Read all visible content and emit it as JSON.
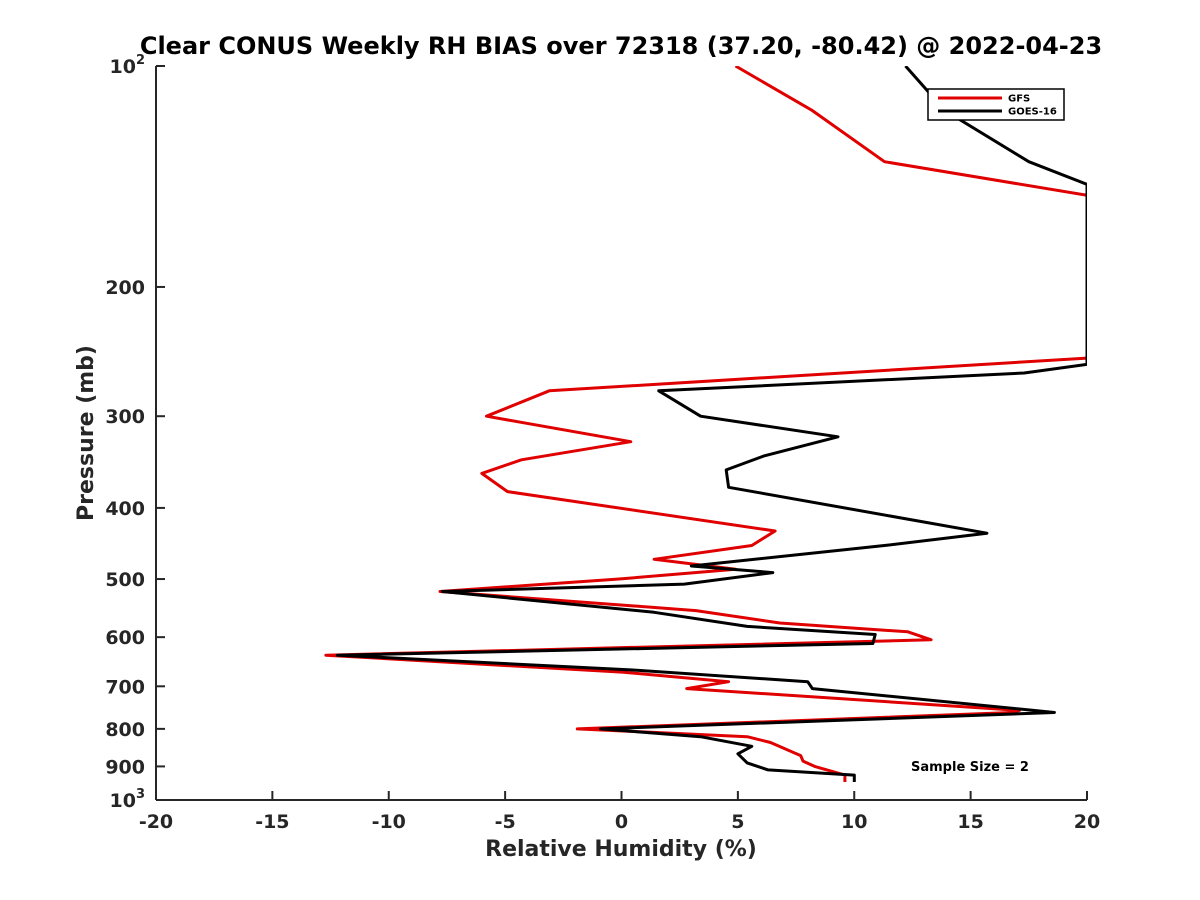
{
  "chart_data": {
    "type": "line",
    "title": "Clear CONUS Weekly RH BIAS over 72318 (37.20, -80.42) @ 2022-04-23",
    "xlabel": "Relative Humidity (%)",
    "ylabel": "Pressure (mb)",
    "xlim": [
      -20,
      20
    ],
    "ylim": [
      100,
      1000
    ],
    "y_scale": "log",
    "y_reversed": true,
    "grid": false,
    "legend_position": "top-right",
    "x_ticks": [
      -20,
      -15,
      -10,
      -5,
      0,
      5,
      10,
      15,
      20
    ],
    "x_tick_labels": [
      "-20",
      "-15",
      "-10",
      "-5",
      "0",
      "5",
      "10",
      "15",
      "20"
    ],
    "y_ticks": [
      {
        "value": 100,
        "base": "10",
        "exp": "2"
      },
      {
        "value": 200,
        "base": "200",
        "exp": ""
      },
      {
        "value": 300,
        "base": "300",
        "exp": ""
      },
      {
        "value": 400,
        "base": "400",
        "exp": ""
      },
      {
        "value": 500,
        "base": "500",
        "exp": ""
      },
      {
        "value": 600,
        "base": "600",
        "exp": ""
      },
      {
        "value": 700,
        "base": "700",
        "exp": ""
      },
      {
        "value": 800,
        "base": "800",
        "exp": ""
      },
      {
        "value": 900,
        "base": "900",
        "exp": ""
      },
      {
        "value": 1000,
        "base": "10",
        "exp": "3"
      }
    ],
    "annotation": "Sample Size = 2",
    "series": [
      {
        "name": "GFS",
        "color": "#e00000",
        "points": [
          [
            4.9,
            100
          ],
          [
            8.2,
            115
          ],
          [
            11.3,
            135
          ],
          [
            20.0,
            150
          ],
          [
            20.0,
            250
          ],
          [
            -3.1,
            277
          ],
          [
            -5.8,
            300
          ],
          [
            0.4,
            325
          ],
          [
            -4.3,
            344
          ],
          [
            -6.0,
            359
          ],
          [
            -4.9,
            380
          ],
          [
            6.6,
            430
          ],
          [
            5.6,
            450
          ],
          [
            1.4,
            470
          ],
          [
            4.9,
            485
          ],
          [
            -0.1,
            500
          ],
          [
            -7.8,
            520
          ],
          [
            3.2,
            552
          ],
          [
            6.8,
            574
          ],
          [
            12.3,
            590
          ],
          [
            13.3,
            605
          ],
          [
            -12.7,
            635
          ],
          [
            0.1,
            670
          ],
          [
            4.6,
            690
          ],
          [
            2.8,
            705
          ],
          [
            17.1,
            755
          ],
          [
            16.8,
            760
          ],
          [
            -1.9,
            800
          ],
          [
            5.4,
            820
          ],
          [
            6.4,
            835
          ],
          [
            7.7,
            870
          ],
          [
            7.8,
            885
          ],
          [
            8.3,
            900
          ],
          [
            9.6,
            925
          ],
          [
            9.6,
            945
          ]
        ]
      },
      {
        "name": "GOES-16",
        "color": "#000000",
        "points": [
          [
            12.2,
            100
          ],
          [
            13.9,
            115
          ],
          [
            17.5,
            135
          ],
          [
            20.0,
            145
          ],
          [
            20.0,
            255
          ],
          [
            17.3,
            262
          ],
          [
            1.6,
            277
          ],
          [
            3.4,
            300
          ],
          [
            9.3,
            320
          ],
          [
            6.1,
            340
          ],
          [
            4.5,
            355
          ],
          [
            4.6,
            375
          ],
          [
            15.7,
            433
          ],
          [
            11.3,
            450
          ],
          [
            3.0,
            480
          ],
          [
            6.5,
            490
          ],
          [
            2.7,
            508
          ],
          [
            -7.7,
            520
          ],
          [
            1.4,
            555
          ],
          [
            5.4,
            580
          ],
          [
            10.9,
            595
          ],
          [
            10.8,
            612
          ],
          [
            -12.2,
            635
          ],
          [
            0.5,
            665
          ],
          [
            8.0,
            690
          ],
          [
            8.2,
            705
          ],
          [
            17.7,
            755
          ],
          [
            18.6,
            760
          ],
          [
            -0.9,
            800
          ],
          [
            3.4,
            820
          ],
          [
            5.6,
            845
          ],
          [
            5.0,
            865
          ],
          [
            5.4,
            890
          ],
          [
            6.3,
            910
          ],
          [
            10.0,
            925
          ],
          [
            10.0,
            945
          ]
        ]
      }
    ]
  }
}
